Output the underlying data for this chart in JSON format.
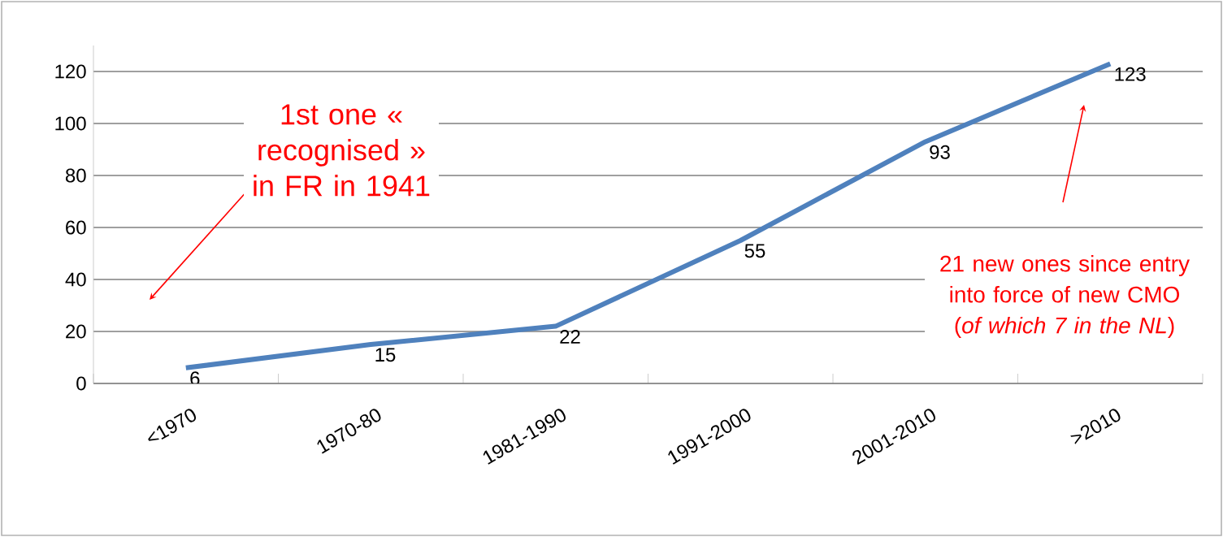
{
  "chart_data": {
    "type": "line",
    "categories": [
      "<1970",
      "1970-80",
      "1981-1990",
      "1991-2000",
      "2001-2010",
      ">2010"
    ],
    "values": [
      6,
      15,
      22,
      55,
      93,
      123
    ],
    "color": "#4f81bd",
    "ylim": [
      0,
      130
    ],
    "yticks": [
      0,
      20,
      40,
      60,
      80,
      100,
      120
    ],
    "grid": "y",
    "data_labels": true,
    "marker": "none",
    "line_style": "solid",
    "annotations": [
      "1st one « recognised » in FR in 1941",
      "21 new ones since entry into force of new CMO (*of which 7 in the NL*)"
    ]
  }
}
